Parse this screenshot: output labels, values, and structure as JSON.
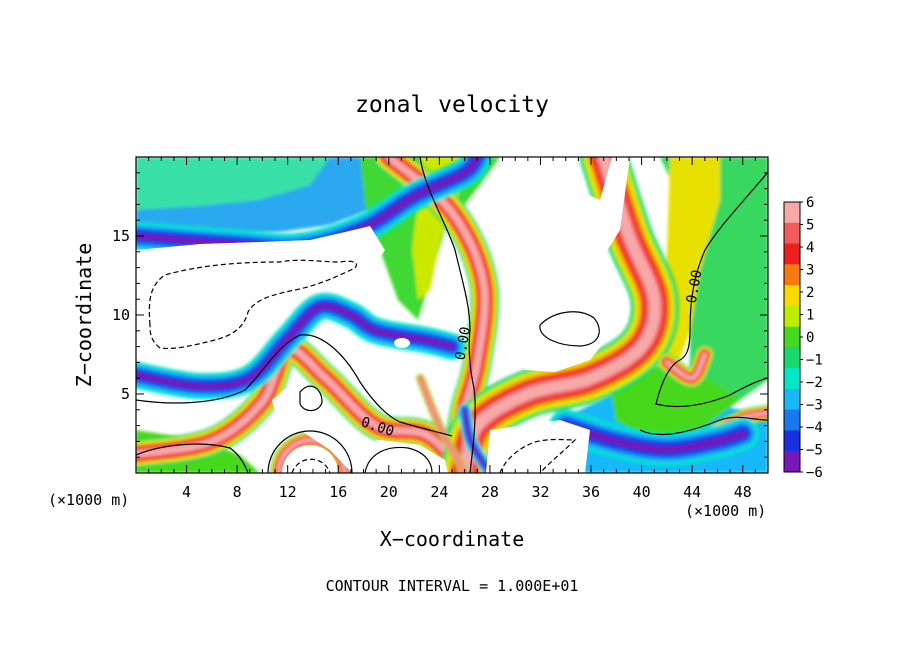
{
  "chart_data": {
    "type": "heatmap",
    "title": "zonal velocity",
    "xlabel": "X−coordinate",
    "ylabel": "Z−coordinate",
    "x_unit_left": "(×1000 m)",
    "x_unit_right": "(×1000 m)",
    "footer": "CONTOUR INTERVAL = 1.000E+01",
    "xlim": [
      0,
      50
    ],
    "ylim": [
      0,
      20
    ],
    "x_ticks": [
      4,
      8,
      12,
      16,
      20,
      24,
      28,
      32,
      36,
      40,
      44,
      48
    ],
    "y_ticks": [
      5,
      10,
      15
    ],
    "colorbar": {
      "range": [
        -6,
        6
      ],
      "levels": [
        6,
        5,
        4,
        3,
        2,
        1,
        0,
        -1,
        -2,
        -3,
        -4,
        -5,
        -6
      ],
      "colors": [
        "#f7a8a8",
        "#f25b5b",
        "#ee1f1f",
        "#f67a10",
        "#f8d800",
        "#bcec00",
        "#46d81e",
        "#18d870",
        "#00e8c8",
        "#18b8f8",
        "#1878f0",
        "#1830e0",
        "#7818b8"
      ]
    },
    "contour_labels": [
      {
        "text": "0.00",
        "x": 25.9,
        "z": 8.2,
        "angle": -80
      },
      {
        "text": "0.00",
        "x": 19.1,
        "z": 2.9,
        "angle": 18
      },
      {
        "text": "0.00",
        "x": 44.2,
        "z": 11.8,
        "angle": -80
      }
    ],
    "features": [
      {
        "kind": "positive-ridge",
        "path": [
          [
            0,
            1.2
          ],
          [
            6,
            2
          ],
          [
            10,
            4.5
          ],
          [
            12,
            7.8
          ],
          [
            15,
            6
          ],
          [
            19,
            3
          ],
          [
            23,
            2.4
          ],
          [
            26,
            0
          ]
        ],
        "width": 2.2
      },
      {
        "kind": "positive-ridge",
        "path": [
          [
            20,
            20
          ],
          [
            25,
            16.5
          ],
          [
            27.5,
            12
          ],
          [
            27,
            7
          ],
          [
            26,
            4
          ],
          [
            25.5,
            1
          ],
          [
            26,
            0
          ]
        ],
        "width": 2.3
      },
      {
        "kind": "positive-ridge",
        "path": [
          [
            37,
            20
          ],
          [
            39,
            15
          ],
          [
            41,
            11
          ],
          [
            40,
            8
          ],
          [
            36,
            6
          ],
          [
            31,
            5
          ],
          [
            27,
            3
          ],
          [
            26,
            0
          ]
        ],
        "width": 3.8
      },
      {
        "kind": "positive-ridge",
        "path": [
          [
            26,
            0
          ],
          [
            24,
            3
          ],
          [
            22.5,
            6
          ]
        ],
        "width": 0.7
      },
      {
        "kind": "positive-ridge",
        "path": [
          [
            42,
            7
          ],
          [
            44,
            6
          ],
          [
            45,
            7.5
          ]
        ],
        "width": 1.5
      },
      {
        "kind": "positive-ridge",
        "path": [
          [
            45.5,
            2.5
          ],
          [
            48,
            3.5
          ],
          [
            50,
            3.8
          ]
        ],
        "width": 1.3
      },
      {
        "kind": "positive-ring",
        "x": 13.9,
        "z": 0,
        "r": 2.6,
        "width": 1.4
      },
      {
        "kind": "negative-band",
        "path": [
          [
            0,
            15
          ],
          [
            8,
            14.5
          ],
          [
            13,
            14.3
          ],
          [
            18,
            15.5
          ],
          [
            22,
            17.5
          ],
          [
            26,
            19
          ],
          [
            27,
            20
          ]
        ],
        "width": 2.3
      },
      {
        "kind": "negative-band",
        "path": [
          [
            0,
            6.2
          ],
          [
            5,
            5.5
          ],
          [
            9,
            6
          ],
          [
            12,
            8.5
          ],
          [
            14.5,
            10.5
          ],
          [
            17,
            10
          ],
          [
            19,
            9
          ],
          [
            23,
            8.4
          ],
          [
            25,
            8
          ]
        ],
        "width": 2.1
      },
      {
        "kind": "negative-band",
        "path": [
          [
            34,
            3
          ],
          [
            38,
            2
          ],
          [
            42,
            1.5
          ],
          [
            46,
            2
          ],
          [
            48,
            2.5
          ]
        ],
        "width": 2.6
      },
      {
        "kind": "negative-band",
        "path": [
          [
            28,
            0
          ],
          [
            26.5,
            2
          ],
          [
            26,
            4
          ]
        ],
        "width": 1.0
      }
    ]
  }
}
